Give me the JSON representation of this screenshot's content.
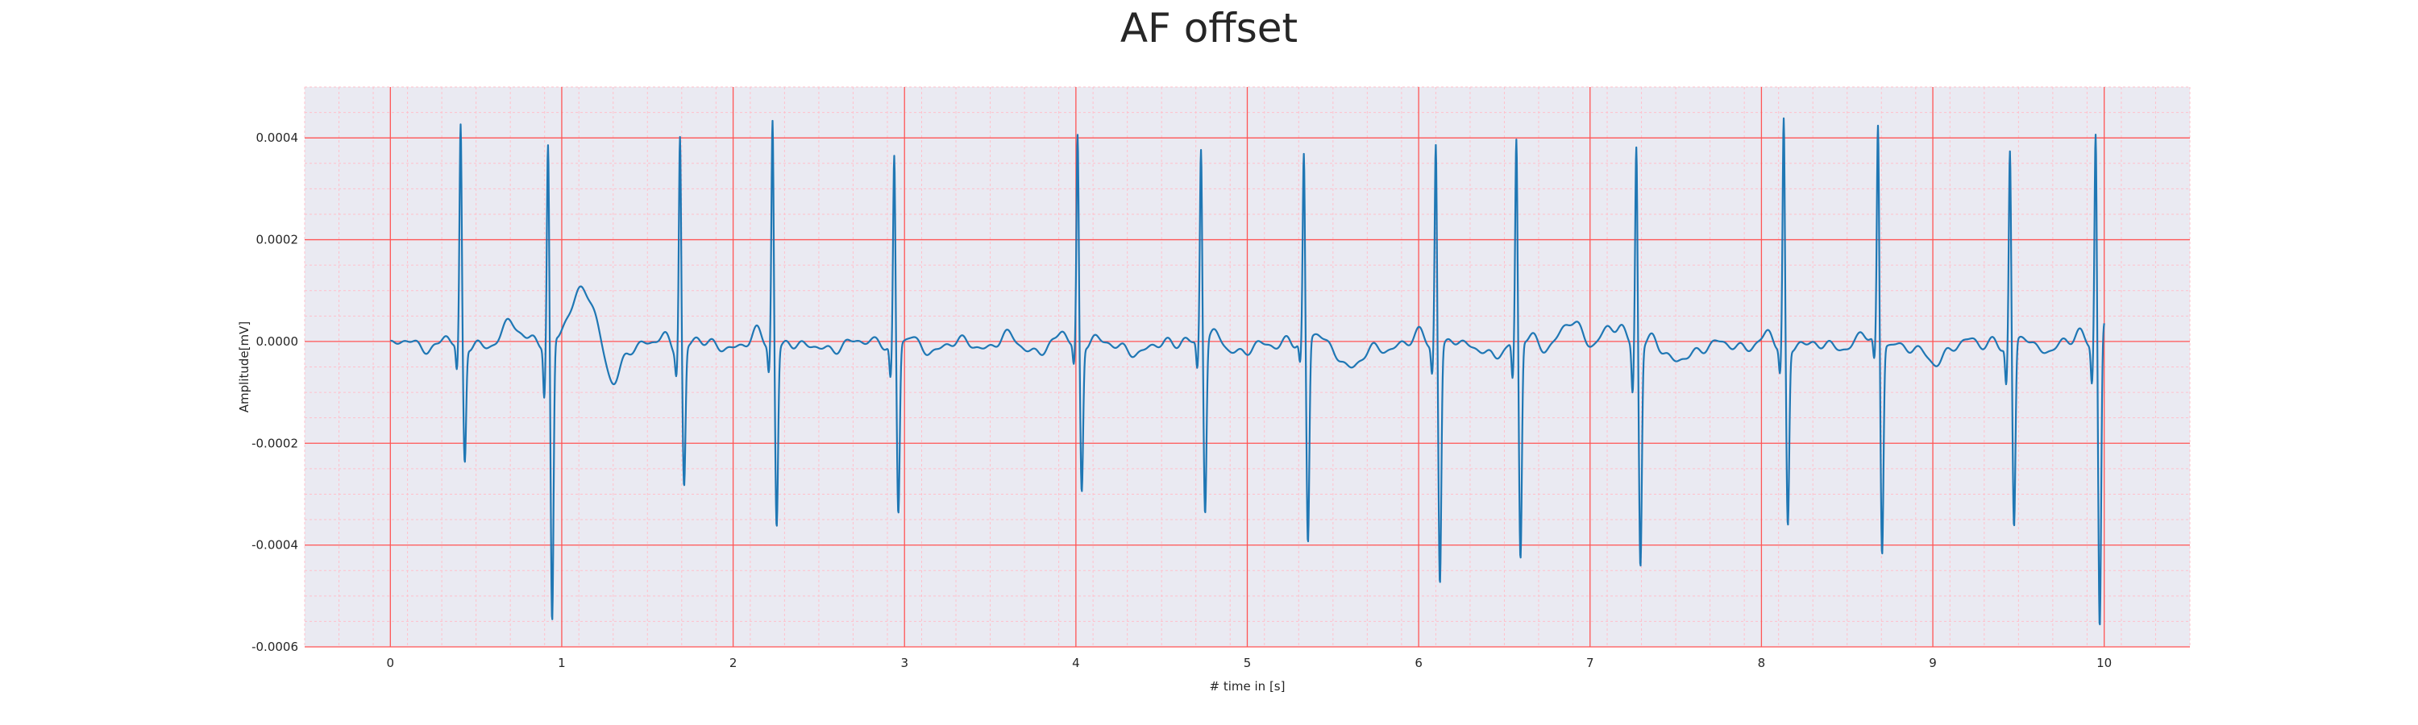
{
  "chart_data": {
    "type": "line",
    "title": "AF offset",
    "xlabel": "# time in [s]",
    "ylabel": "Amplitude[mV]",
    "xlim": [
      -0.5,
      10.5
    ],
    "ylim": [
      -0.0006,
      0.0005
    ],
    "x_ticks": [
      0,
      1,
      2,
      3,
      4,
      5,
      6,
      7,
      8,
      9,
      10
    ],
    "x_tick_labels": [
      "0",
      "1",
      "2",
      "3",
      "4",
      "5",
      "6",
      "7",
      "8",
      "9",
      "10"
    ],
    "y_ticks": [
      -0.0006,
      -0.0004,
      -0.0002,
      0.0,
      0.0002,
      0.0004
    ],
    "y_tick_labels": [
      "-0.0006",
      "-0.0004",
      "-0.0002",
      "0.0000",
      "0.0002",
      "0.0004"
    ],
    "grid": true,
    "minor_grid": true,
    "colors": {
      "line": "#1f77b4",
      "plot_bg": "#eaeaf2",
      "major_grid": "#ff5555",
      "minor_grid": "#ffc0cb"
    },
    "series": [
      {
        "x_start": 0,
        "x_end": 10,
        "beats": [
          {
            "t": 0.41,
            "r": 0.00043,
            "s": -0.00023,
            "q": -5e-05
          },
          {
            "t": 0.92,
            "r": 0.00039,
            "s": -0.00056,
            "q": -0.0001
          },
          {
            "t": 1.69,
            "r": 0.00043,
            "s": -0.00027,
            "q": -4e-05
          },
          {
            "t": 2.23,
            "r": 0.00045,
            "s": -0.00035,
            "q": -5e-05
          },
          {
            "t": 2.94,
            "r": 0.00038,
            "s": -0.00033,
            "q": -6e-05
          },
          {
            "t": 4.01,
            "r": 0.00041,
            "s": -0.00029,
            "q": -4e-05
          },
          {
            "t": 4.73,
            "r": 0.00039,
            "s": -0.00033,
            "q": -5e-05
          },
          {
            "t": 5.33,
            "r": 0.00037,
            "s": -0.0004,
            "q": -4e-05
          },
          {
            "t": 6.1,
            "r": 0.00041,
            "s": -0.00046,
            "q": -5e-05
          },
          {
            "t": 6.57,
            "r": 0.0004,
            "s": -0.00043,
            "q": -7e-05
          },
          {
            "t": 7.27,
            "r": 0.0004,
            "s": -0.00043,
            "q": -9e-05
          },
          {
            "t": 8.13,
            "r": 0.00045,
            "s": -0.00035,
            "q": -5e-05
          },
          {
            "t": 8.68,
            "r": 0.00043,
            "s": -0.00041,
            "q": -4e-05
          },
          {
            "t": 9.45,
            "r": 0.00039,
            "s": -0.00036,
            "q": -7e-05
          },
          {
            "t": 9.95,
            "r": 0.00043,
            "s": -0.00056,
            "q": -7e-05
          }
        ],
        "waves": [
          {
            "t": 0.71,
            "a": 4e-05,
            "w": 0.05
          },
          {
            "t": 1.12,
            "a": 0.00013,
            "w": 0.06
          },
          {
            "t": 1.3,
            "a": -8e-05,
            "w": 0.04
          },
          {
            "t": 3.6,
            "a": 2e-05,
            "w": 0.05
          },
          {
            "t": 5.62,
            "a": -4e-05,
            "w": 0.05
          },
          {
            "t": 6.48,
            "a": -3e-05,
            "w": 0.04
          },
          {
            "t": 6.9,
            "a": 5e-05,
            "w": 0.06
          },
          {
            "t": 7.1,
            "a": 3e-05,
            "w": 0.05
          },
          {
            "t": 7.48,
            "a": -3e-05,
            "w": 0.05
          },
          {
            "t": 9.0,
            "a": -3e-05,
            "w": 0.05
          },
          {
            "t": 10.0,
            "a": 4e-05,
            "w": 0.02
          }
        ]
      }
    ]
  }
}
